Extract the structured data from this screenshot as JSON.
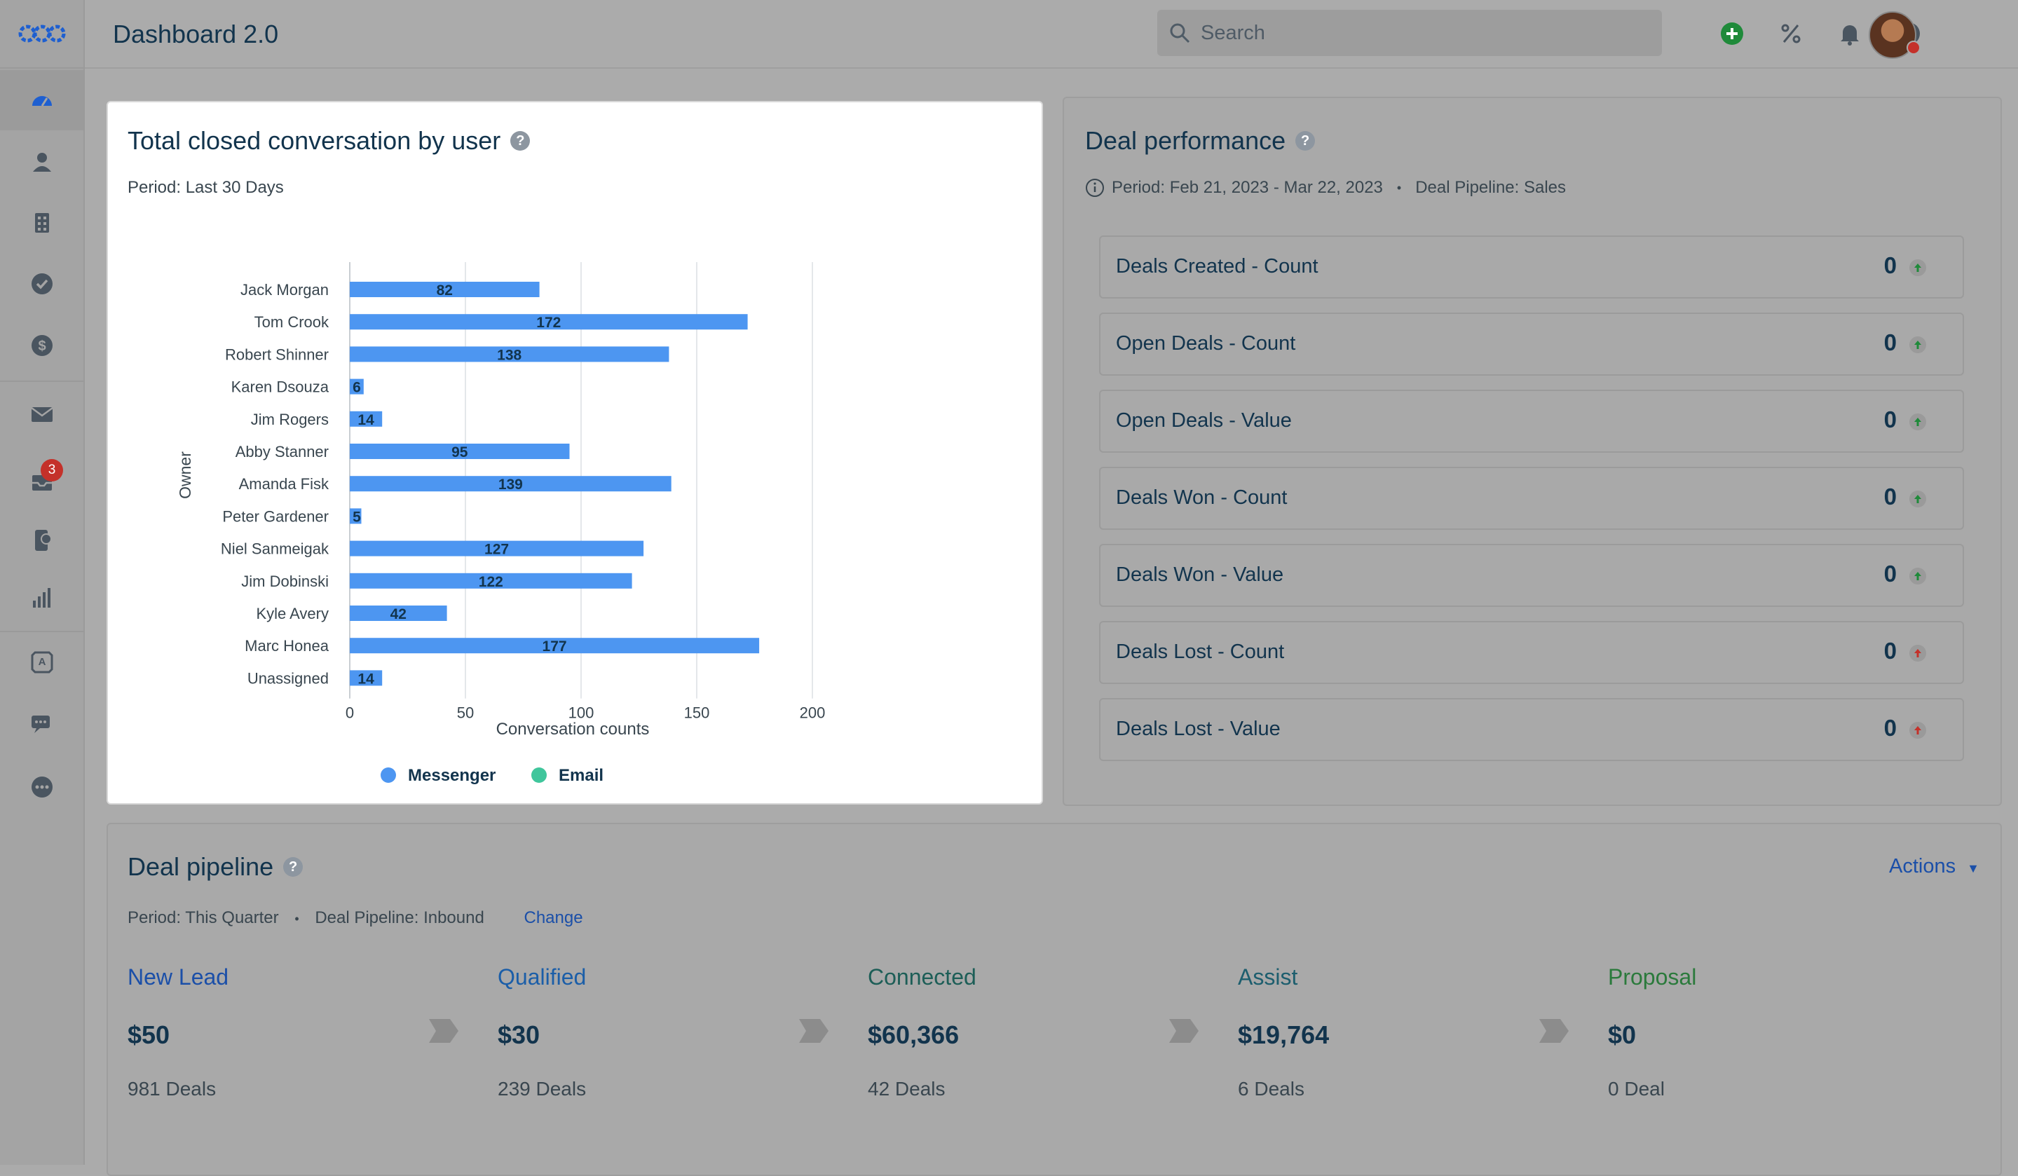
{
  "header": {
    "title": "Dashboard 2.0",
    "search_placeholder": "Search"
  },
  "sidebar": {
    "badge_count": "3",
    "items": [
      "dashboard-icon",
      "contacts-icon",
      "accounts-icon",
      "tasks-icon",
      "deals-icon",
      "mail-icon",
      "inbox-icon",
      "phone-icon",
      "reports-icon",
      "automation-icon",
      "chat-icon",
      "more-icon"
    ]
  },
  "chart_card": {
    "title": "Total closed conversation by user",
    "period": "Period: Last 30 Days"
  },
  "chart_data": {
    "type": "bar",
    "orientation": "horizontal",
    "categories": [
      "Jack Morgan",
      "Tom Crook",
      "Robert Shinner",
      "Karen Dsouza",
      "Jim Rogers",
      "Abby Stanner",
      "Amanda Fisk",
      "Peter Gardener",
      "Niel Sanmeigak",
      "Jim Dobinski",
      "Kyle Avery",
      "Marc Honea",
      "Unassigned"
    ],
    "series": [
      {
        "name": "Messenger",
        "color": "#4d96f1",
        "values": [
          82,
          172,
          138,
          6,
          14,
          95,
          139,
          5,
          127,
          122,
          42,
          177,
          14
        ]
      },
      {
        "name": "Email",
        "color": "#40c69c",
        "values": [
          0,
          0,
          0,
          0,
          0,
          0,
          0,
          0,
          0,
          0,
          0,
          0,
          0
        ]
      }
    ],
    "xlabel": "Conversation counts",
    "ylabel": "Owner",
    "xlim": [
      0,
      200
    ],
    "xticks": [
      0,
      50,
      100,
      150,
      200
    ],
    "legend": "bottom"
  },
  "performance": {
    "title": "Deal performance",
    "period": "Period: Feb 21, 2023 - Mar 22, 2023",
    "pipeline": "Deal Pipeline: Sales",
    "rows": [
      {
        "label": "Deals Created - Count",
        "value": "0",
        "trend": "up",
        "color": "#1f8a3a"
      },
      {
        "label": "Open Deals - Count",
        "value": "0",
        "trend": "up",
        "color": "#1f8a3a"
      },
      {
        "label": "Open Deals - Value",
        "value": "0",
        "trend": "up",
        "color": "#1f8a3a"
      },
      {
        "label": "Deals Won - Count",
        "value": "0",
        "trend": "up",
        "color": "#1f8a3a"
      },
      {
        "label": "Deals Won - Value",
        "value": "0",
        "trend": "up",
        "color": "#1f8a3a"
      },
      {
        "label": "Deals Lost - Count",
        "value": "0",
        "trend": "up",
        "color": "#c4312a"
      },
      {
        "label": "Deals Lost - Value",
        "value": "0",
        "trend": "up",
        "color": "#c4312a"
      }
    ]
  },
  "pipeline": {
    "title": "Deal pipeline",
    "period": "Period: This Quarter",
    "pipeline": "Deal Pipeline: Inbound",
    "change_label": "Change",
    "actions_label": "Actions",
    "stages": [
      {
        "name": "New Lead",
        "amount": "$50",
        "deals": "981 Deals",
        "color": "#1b4fa8"
      },
      {
        "name": "Qualified",
        "amount": "$30",
        "deals": "239 Deals",
        "color": "#1b5ea8"
      },
      {
        "name": "Connected",
        "amount": "$60,366",
        "deals": "42 Deals",
        "color": "#1d5e57"
      },
      {
        "name": "Assist",
        "amount": "$19,764",
        "deals": "6 Deals",
        "color": "#1d5e6e"
      },
      {
        "name": "Proposal",
        "amount": "$0",
        "deals": "0 Deal",
        "color": "#2b7a3c"
      }
    ]
  }
}
